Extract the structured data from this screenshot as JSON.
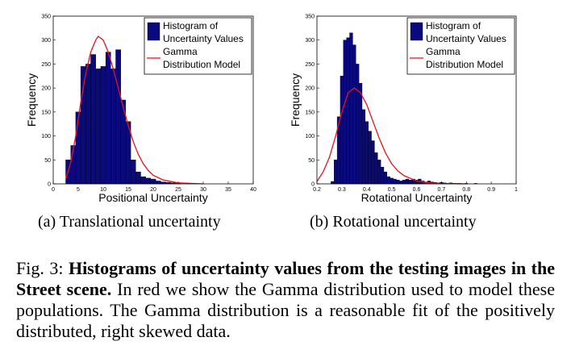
{
  "chart_data": [
    {
      "type": "bar",
      "xlabel": "Positional Uncertainty",
      "ylabel": "Frequency",
      "xlim": [
        0,
        40
      ],
      "ylim": [
        0,
        350
      ],
      "xticks": [
        "0",
        "5",
        "10",
        "15",
        "20",
        "25",
        "30",
        "35",
        "40"
      ],
      "yticks": [
        "0",
        "50",
        "100",
        "150",
        "200",
        "250",
        "300",
        "350"
      ],
      "legend": [
        "Histogram of Uncertainty Values",
        "Gamma Distribution Model"
      ],
      "legend_position": "top-right",
      "bar_color": "#0a0a7e",
      "curve_color": "#e4141c",
      "bin_width": 1,
      "bins": [
        {
          "x": 3,
          "y": 50
        },
        {
          "x": 4,
          "y": 80
        },
        {
          "x": 5,
          "y": 150
        },
        {
          "x": 6,
          "y": 245
        },
        {
          "x": 7,
          "y": 250
        },
        {
          "x": 8,
          "y": 270
        },
        {
          "x": 9,
          "y": 240
        },
        {
          "x": 10,
          "y": 245
        },
        {
          "x": 11,
          "y": 275
        },
        {
          "x": 12,
          "y": 240
        },
        {
          "x": 13,
          "y": 280
        },
        {
          "x": 14,
          "y": 175
        },
        {
          "x": 15,
          "y": 130
        },
        {
          "x": 16,
          "y": 50
        },
        {
          "x": 17,
          "y": 25
        },
        {
          "x": 18,
          "y": 15
        },
        {
          "x": 19,
          "y": 12
        },
        {
          "x": 20,
          "y": 10
        },
        {
          "x": 21,
          "y": 6
        },
        {
          "x": 22,
          "y": 4
        },
        {
          "x": 23,
          "y": 3
        },
        {
          "x": 24,
          "y": 2
        },
        {
          "x": 25,
          "y": 1
        },
        {
          "x": 27,
          "y": 1
        }
      ],
      "model_curve": [
        [
          2.5,
          10
        ],
        [
          3.5,
          45
        ],
        [
          4.5,
          100
        ],
        [
          5.5,
          170
        ],
        [
          6.5,
          230
        ],
        [
          7.5,
          275
        ],
        [
          8.5,
          300
        ],
        [
          9,
          308
        ],
        [
          10,
          300
        ],
        [
          11,
          275
        ],
        [
          12,
          240
        ],
        [
          13,
          200
        ],
        [
          14,
          160
        ],
        [
          15,
          122
        ],
        [
          16,
          88
        ],
        [
          17,
          62
        ],
        [
          18,
          42
        ],
        [
          19,
          28
        ],
        [
          20,
          18
        ],
        [
          22,
          8
        ],
        [
          25,
          2
        ],
        [
          30,
          0
        ]
      ]
    },
    {
      "type": "bar",
      "xlabel": "Rotational Uncertainty",
      "ylabel": "Frequency",
      "xlim": [
        0.2,
        1.0
      ],
      "ylim": [
        0,
        350
      ],
      "xticks": [
        "0.2",
        "0.3",
        "0.4",
        "0.5",
        "0.6",
        "0.7",
        "0.8",
        "0.9",
        "1"
      ],
      "yticks": [
        "0",
        "50",
        "100",
        "150",
        "200",
        "250",
        "300",
        "350"
      ],
      "legend": [
        "Histogram of Uncertainty Values",
        "Gamma Distribution Model"
      ],
      "legend_position": "top-right",
      "bar_color": "#0a0a7e",
      "curve_color": "#e4141c",
      "bin_width": 0.0125,
      "bins": [
        {
          "x": 0.2625,
          "y": 5
        },
        {
          "x": 0.275,
          "y": 50
        },
        {
          "x": 0.2875,
          "y": 140
        },
        {
          "x": 0.3,
          "y": 225
        },
        {
          "x": 0.3125,
          "y": 300
        },
        {
          "x": 0.325,
          "y": 305
        },
        {
          "x": 0.3375,
          "y": 315
        },
        {
          "x": 0.35,
          "y": 290
        },
        {
          "x": 0.3625,
          "y": 250
        },
        {
          "x": 0.375,
          "y": 210
        },
        {
          "x": 0.3875,
          "y": 155
        },
        {
          "x": 0.4,
          "y": 130
        },
        {
          "x": 0.4125,
          "y": 110
        },
        {
          "x": 0.425,
          "y": 90
        },
        {
          "x": 0.4375,
          "y": 65
        },
        {
          "x": 0.45,
          "y": 50
        },
        {
          "x": 0.4625,
          "y": 35
        },
        {
          "x": 0.475,
          "y": 25
        },
        {
          "x": 0.4875,
          "y": 15
        },
        {
          "x": 0.5,
          "y": 12
        },
        {
          "x": 0.5125,
          "y": 10
        },
        {
          "x": 0.525,
          "y": 8
        },
        {
          "x": 0.5375,
          "y": 6
        },
        {
          "x": 0.55,
          "y": 8
        },
        {
          "x": 0.5625,
          "y": 10
        },
        {
          "x": 0.575,
          "y": 8
        },
        {
          "x": 0.5875,
          "y": 10
        },
        {
          "x": 0.6,
          "y": 8
        },
        {
          "x": 0.6125,
          "y": 10
        },
        {
          "x": 0.625,
          "y": 6
        },
        {
          "x": 0.6375,
          "y": 4
        },
        {
          "x": 0.65,
          "y": 6
        },
        {
          "x": 0.6625,
          "y": 4
        },
        {
          "x": 0.675,
          "y": 3
        },
        {
          "x": 0.6875,
          "y": 2
        },
        {
          "x": 0.7,
          "y": 3
        },
        {
          "x": 0.7125,
          "y": 2
        },
        {
          "x": 0.725,
          "y": 1
        },
        {
          "x": 0.7375,
          "y": 2
        },
        {
          "x": 0.75,
          "y": 1
        },
        {
          "x": 0.7625,
          "y": 1
        },
        {
          "x": 0.775,
          "y": 1
        },
        {
          "x": 0.8,
          "y": 1
        },
        {
          "x": 0.8375,
          "y": 1
        }
      ],
      "model_curve": [
        [
          0.2,
          5
        ],
        [
          0.225,
          25
        ],
        [
          0.25,
          55
        ],
        [
          0.275,
          100
        ],
        [
          0.3,
          150
        ],
        [
          0.325,
          190
        ],
        [
          0.35,
          200
        ],
        [
          0.375,
          190
        ],
        [
          0.4,
          165
        ],
        [
          0.425,
          130
        ],
        [
          0.45,
          95
        ],
        [
          0.475,
          65
        ],
        [
          0.5,
          42
        ],
        [
          0.525,
          27
        ],
        [
          0.55,
          17
        ],
        [
          0.6,
          6
        ],
        [
          0.65,
          2
        ],
        [
          0.7,
          0.5
        ],
        [
          0.8,
          0
        ]
      ]
    }
  ],
  "subcaptions": [
    "(a) Translational uncertainty",
    "(b) Rotational uncertainty"
  ],
  "caption": {
    "prefix": "Fig. 3: ",
    "bold": "Histograms of uncertainty values from the testing images in the Street scene.",
    "rest": " In red we show the Gamma distribution used to model these populations. The Gamma distribution is a reasonable fit of the positively distributed, right skewed data."
  }
}
